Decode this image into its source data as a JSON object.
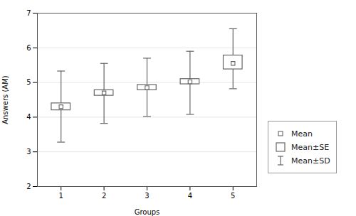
{
  "chart_data": {
    "type": "errorbar",
    "xlabel": "Groups",
    "ylabel": "Answers (AM)",
    "x": [
      1,
      2,
      3,
      4,
      5
    ],
    "series": [
      {
        "name": "Mean",
        "type": "point",
        "marker": "square",
        "color": "#666666",
        "values": [
          4.3,
          4.7,
          4.85,
          5.02,
          5.55
        ]
      },
      {
        "name": "Mean±SE",
        "type": "box",
        "color": "#666666",
        "low": [
          4.2,
          4.62,
          4.78,
          4.95,
          5.38
        ],
        "high": [
          4.4,
          4.78,
          4.93,
          5.1,
          5.78
        ]
      },
      {
        "name": "Mean±SD",
        "type": "errorbar",
        "color": "#666666",
        "low": [
          3.28,
          3.82,
          4.02,
          4.08,
          4.82
        ],
        "high": [
          5.33,
          5.55,
          5.7,
          5.9,
          6.55
        ]
      }
    ],
    "xlim": [
      0.45,
      5.55
    ],
    "xticks": [
      1,
      2,
      3,
      4,
      5
    ],
    "ylim": [
      2,
      7
    ],
    "yticks": [
      2,
      3,
      4,
      5,
      6,
      7
    ],
    "grid": "y",
    "legend": "right"
  }
}
